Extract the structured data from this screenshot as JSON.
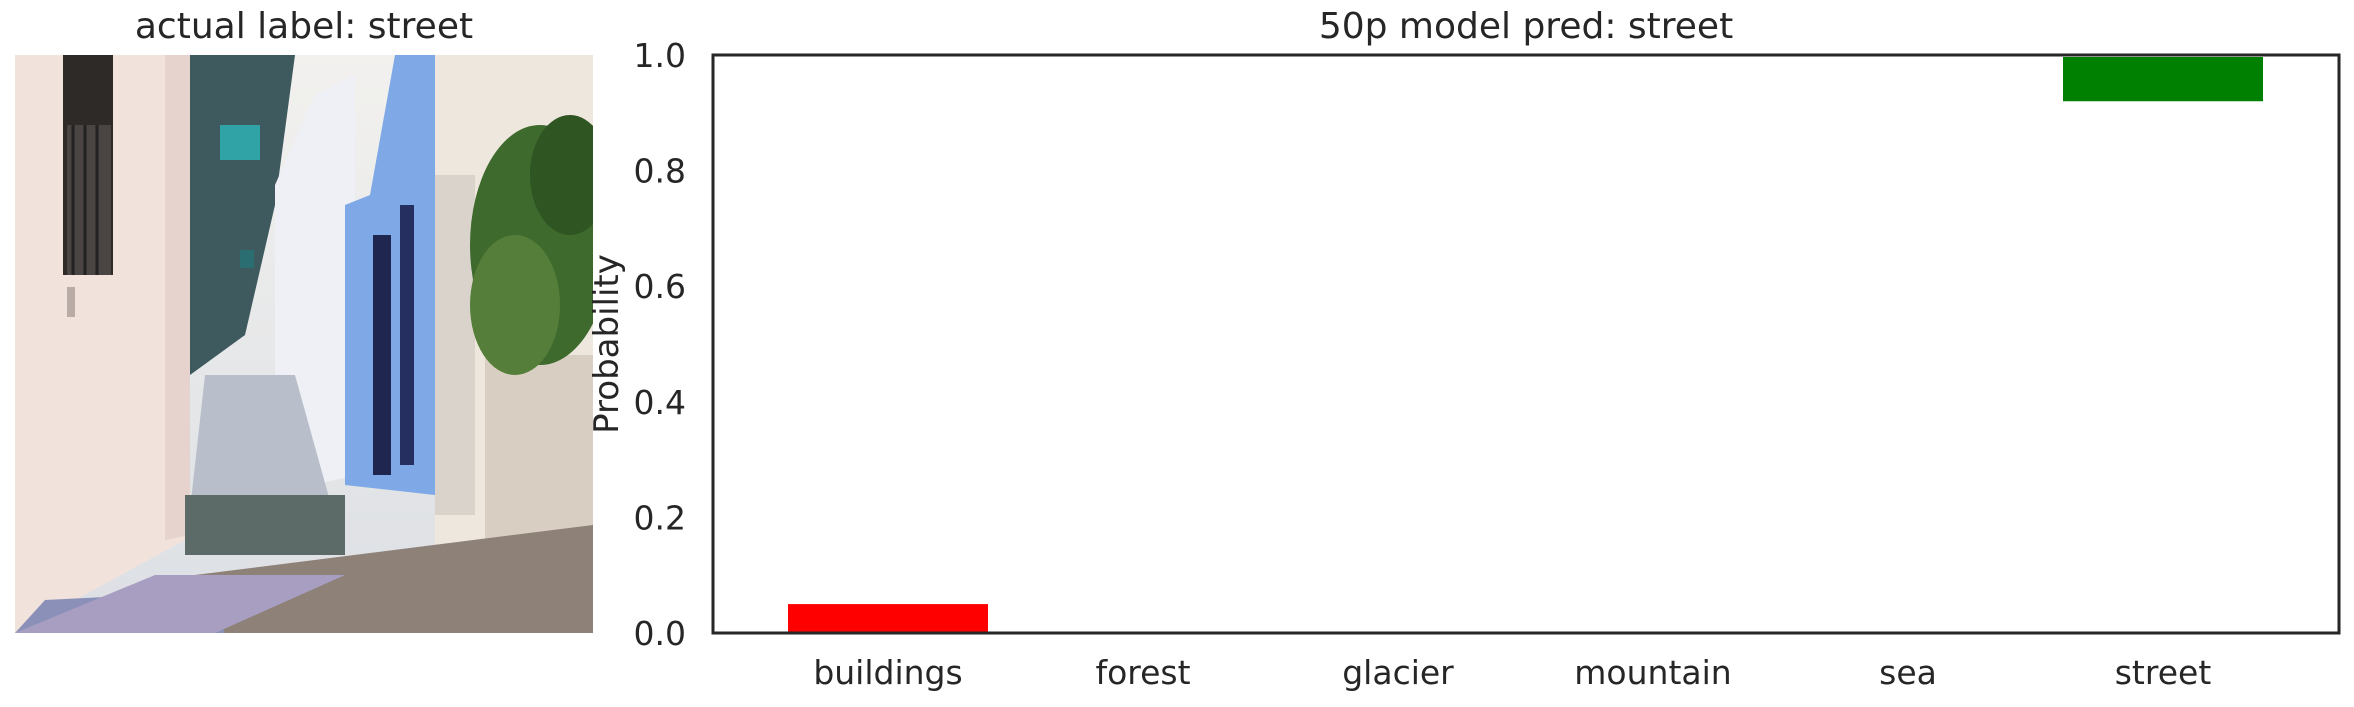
{
  "photo_panel": {
    "title": "actual label: street"
  },
  "chart_data": {
    "type": "bar",
    "title": "50p model pred: street",
    "xlabel": "",
    "ylabel": "Probability",
    "categories": [
      "buildings",
      "forest",
      "glacier",
      "mountain",
      "sea",
      "street"
    ],
    "values": [
      0.05,
      0.0,
      0.0,
      0.0,
      0.0,
      0.92
    ],
    "bar_colors": [
      "#ff0000",
      "#ffffff",
      "#ffffff",
      "#ffffff",
      "#ffffff",
      "#008000"
    ],
    "ylim": [
      0.0,
      1.0
    ],
    "yticks": [
      "0.0",
      "0.2",
      "0.4",
      "0.6",
      "0.8",
      "1.0"
    ],
    "grid": false
  }
}
